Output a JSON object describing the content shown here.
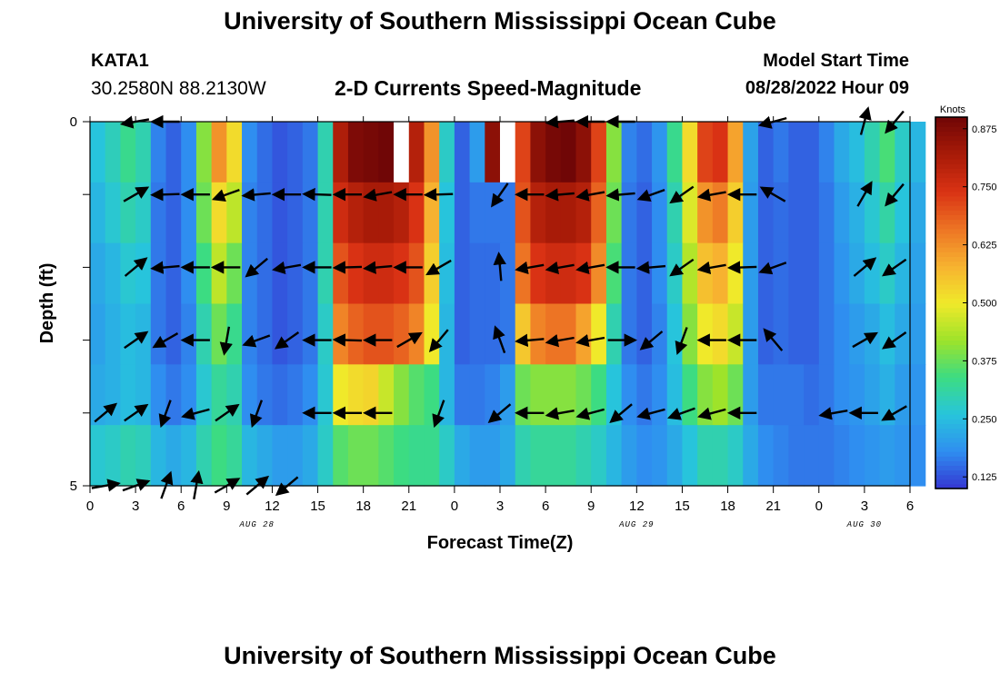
{
  "header": {
    "title": "University of Southern Mississippi Ocean Cube",
    "station_id": "KATA1",
    "station_coords": "30.2580N  88.2130W",
    "chart_heading": "2-D Currents Speed-Magnitude",
    "model_start_label": "Model Start Time",
    "model_start_value": "08/28/2022 Hour 09"
  },
  "footer": {
    "title": "University of Southern Mississippi Ocean Cube"
  },
  "chart_data": {
    "type": "heatmap",
    "title": "2-D Currents Speed-Magnitude",
    "xlabel": "Forecast Time(Z)",
    "ylabel": "Depth (ft)",
    "x_start_hour": 0,
    "x_end_hour": 54,
    "x_tick_labels": [
      "0",
      "3",
      "6",
      "9",
      "12",
      "15",
      "18",
      "21",
      "0",
      "3",
      "6",
      "9",
      "12",
      "15",
      "18",
      "21",
      "0",
      "3",
      "6"
    ],
    "date_labels": [
      {
        "text": "AUG 28",
        "hour": 11
      },
      {
        "text": "AUG 29",
        "hour": 36
      },
      {
        "text": "AUG 30",
        "hour": 51
      }
    ],
    "y_tick_labels": [
      "0",
      "5"
    ],
    "ylim": [
      0,
      5
    ],
    "colorbar": {
      "label": "Knots",
      "range": [
        0.1,
        0.9
      ],
      "ticks": [
        "0.125",
        "0.250",
        "0.375",
        "0.500",
        "0.625",
        "0.750",
        "0.875"
      ],
      "tick_values": [
        0.125,
        0.25,
        0.375,
        0.5,
        0.625,
        0.75,
        0.875
      ]
    },
    "colors": [
      "#3535d2",
      "#2f8ef0",
      "#27c4dc",
      "#3cdc82",
      "#9ee32a",
      "#f0e92a",
      "#f7b230",
      "#ed7424",
      "#d93214",
      "#a81b08",
      "#700606"
    ],
    "missing_color": "#ffffff",
    "layer_labels": [
      "0.0",
      "1.0",
      "2.0",
      "3.0",
      "4.0",
      "5.0"
    ],
    "speed_knots": [
      [
        0.26,
        0.29,
        0.33,
        0.3,
        0.17,
        0.14,
        0.18,
        0.4,
        0.62,
        0.52,
        0.18,
        0.15,
        0.13,
        0.14,
        0.16,
        0.3,
        0.81,
        0.88,
        0.89,
        0.9,
        0.87,
        0.8,
        0.62,
        0.28,
        0.14,
        0.2,
        0.86,
        0.2,
        0.72,
        0.86,
        0.89,
        0.9,
        0.86,
        0.72,
        0.4,
        0.17,
        0.15,
        0.19,
        0.33,
        0.52,
        0.72,
        0.74,
        0.6,
        0.21,
        0.14,
        0.16,
        0.14,
        0.14,
        0.17,
        0.22,
        0.25,
        0.3,
        0.35,
        0.28,
        0.24
      ],
      [
        0.24,
        0.27,
        0.3,
        0.28,
        0.16,
        0.14,
        0.18,
        0.38,
        0.52,
        0.45,
        0.17,
        0.15,
        0.13,
        0.14,
        0.16,
        0.3,
        0.76,
        0.8,
        0.82,
        0.82,
        0.8,
        0.74,
        0.58,
        0.26,
        0.14,
        0.16,
        0.16,
        0.16,
        0.7,
        0.8,
        0.82,
        0.82,
        0.8,
        0.68,
        0.38,
        0.16,
        0.14,
        0.18,
        0.3,
        0.48,
        0.62,
        0.65,
        0.54,
        0.2,
        0.14,
        0.15,
        0.14,
        0.14,
        0.16,
        0.2,
        0.23,
        0.27,
        0.31,
        0.26,
        0.22
      ],
      [
        0.22,
        0.24,
        0.27,
        0.26,
        0.16,
        0.14,
        0.18,
        0.34,
        0.45,
        0.38,
        0.17,
        0.15,
        0.13,
        0.14,
        0.16,
        0.3,
        0.7,
        0.74,
        0.76,
        0.76,
        0.74,
        0.7,
        0.54,
        0.25,
        0.14,
        0.15,
        0.15,
        0.16,
        0.66,
        0.74,
        0.76,
        0.76,
        0.74,
        0.63,
        0.35,
        0.16,
        0.14,
        0.18,
        0.28,
        0.44,
        0.56,
        0.58,
        0.5,
        0.2,
        0.14,
        0.15,
        0.14,
        0.14,
        0.16,
        0.19,
        0.22,
        0.25,
        0.28,
        0.24,
        0.21
      ],
      [
        0.21,
        0.23,
        0.25,
        0.24,
        0.16,
        0.14,
        0.17,
        0.3,
        0.38,
        0.33,
        0.17,
        0.15,
        0.13,
        0.14,
        0.16,
        0.28,
        0.64,
        0.68,
        0.7,
        0.7,
        0.68,
        0.64,
        0.5,
        0.24,
        0.14,
        0.15,
        0.15,
        0.16,
        0.55,
        0.64,
        0.66,
        0.66,
        0.6,
        0.5,
        0.3,
        0.16,
        0.14,
        0.17,
        0.26,
        0.4,
        0.5,
        0.52,
        0.46,
        0.2,
        0.14,
        0.15,
        0.14,
        0.14,
        0.16,
        0.18,
        0.2,
        0.22,
        0.25,
        0.22,
        0.2
      ],
      [
        0.22,
        0.23,
        0.25,
        0.24,
        0.18,
        0.16,
        0.18,
        0.27,
        0.32,
        0.3,
        0.18,
        0.16,
        0.15,
        0.16,
        0.18,
        0.27,
        0.5,
        0.52,
        0.53,
        0.46,
        0.4,
        0.36,
        0.34,
        0.24,
        0.16,
        0.16,
        0.17,
        0.2,
        0.38,
        0.4,
        0.4,
        0.4,
        0.38,
        0.34,
        0.26,
        0.18,
        0.16,
        0.18,
        0.25,
        0.34,
        0.4,
        0.42,
        0.38,
        0.2,
        0.16,
        0.16,
        0.16,
        0.15,
        0.16,
        0.18,
        0.19,
        0.21,
        0.23,
        0.2,
        0.19
      ],
      [
        0.27,
        0.28,
        0.3,
        0.29,
        0.24,
        0.22,
        0.24,
        0.3,
        0.34,
        0.32,
        0.24,
        0.22,
        0.2,
        0.2,
        0.22,
        0.28,
        0.36,
        0.38,
        0.38,
        0.36,
        0.34,
        0.33,
        0.33,
        0.28,
        0.22,
        0.2,
        0.2,
        0.22,
        0.3,
        0.32,
        0.32,
        0.32,
        0.3,
        0.28,
        0.24,
        0.2,
        0.18,
        0.19,
        0.22,
        0.26,
        0.3,
        0.3,
        0.28,
        0.22,
        0.18,
        0.17,
        0.16,
        0.16,
        0.16,
        0.17,
        0.18,
        0.19,
        0.2,
        0.19,
        0.18
      ]
    ],
    "missing_cells": [
      {
        "hour": 20,
        "layer": 0
      },
      {
        "hour": 27,
        "layer": 0
      }
    ],
    "vector_hours": [
      1,
      3,
      5,
      7,
      9,
      11,
      13,
      15,
      17,
      19,
      21,
      23,
      25,
      27,
      29,
      31,
      33,
      35,
      37,
      39,
      41,
      43,
      45,
      47,
      49,
      51,
      53
    ],
    "vector_layers": [
      0,
      1,
      2,
      3,
      4,
      5
    ],
    "vector_angles_deg": [
      [
        0,
        190,
        180,
        0,
        0,
        0,
        0,
        0,
        0,
        0,
        0,
        0,
        0,
        0,
        0,
        185,
        180,
        180,
        0,
        0,
        0,
        0,
        195,
        0,
        0,
        75,
        230
      ],
      [
        0,
        30,
        182,
        180,
        200,
        185,
        180,
        178,
        180,
        190,
        180,
        182,
        0,
        235,
        180,
        185,
        190,
        185,
        200,
        215,
        190,
        180,
        150,
        0,
        0,
        60,
        230
      ],
      [
        0,
        40,
        185,
        180,
        180,
        220,
        190,
        180,
        182,
        185,
        180,
        210,
        0,
        95,
        190,
        190,
        190,
        180,
        185,
        215,
        190,
        182,
        200,
        0,
        0,
        40,
        215
      ],
      [
        0,
        35,
        210,
        180,
        260,
        200,
        215,
        180,
        178,
        180,
        30,
        230,
        0,
        110,
        185,
        190,
        190,
        0,
        220,
        250,
        180,
        180,
        130,
        0,
        0,
        30,
        215
      ],
      [
        40,
        35,
        250,
        195,
        35,
        250,
        0,
        180,
        180,
        180,
        0,
        250,
        0,
        220,
        180,
        190,
        195,
        220,
        195,
        200,
        195,
        180,
        0,
        0,
        190,
        180,
        210
      ],
      [
        10,
        20,
        70,
        80,
        30,
        40,
        220,
        0,
        0,
        0,
        0,
        0,
        0,
        0,
        0,
        0,
        0,
        0,
        0,
        0,
        0,
        0,
        0,
        0,
        0,
        0,
        0
      ]
    ],
    "vector_lengths": [
      [
        0,
        1,
        1,
        0,
        0,
        0,
        0,
        0,
        0,
        0,
        0,
        0,
        0,
        0,
        0,
        1,
        1,
        1,
        0,
        0,
        0,
        0,
        1,
        0,
        0,
        1,
        1
      ],
      [
        0,
        1,
        1,
        1,
        1,
        1,
        1,
        1,
        1,
        1,
        1,
        1,
        0,
        1,
        1,
        1,
        1,
        1,
        1,
        1,
        1,
        1,
        1,
        0,
        0,
        1,
        1
      ],
      [
        0,
        1,
        1,
        1,
        1,
        1,
        1,
        1,
        1,
        1,
        1,
        1,
        0,
        1,
        1,
        1,
        1,
        1,
        1,
        1,
        1,
        1,
        1,
        0,
        0,
        1,
        1
      ],
      [
        0,
        1,
        1,
        1,
        1,
        1,
        1,
        1,
        1,
        1,
        1,
        1,
        0,
        1,
        1,
        1,
        1,
        1,
        1,
        1,
        1,
        1,
        1,
        0,
        0,
        1,
        1
      ],
      [
        1,
        1,
        1,
        1,
        1,
        1,
        0,
        1,
        1,
        1,
        0,
        1,
        0,
        1,
        1,
        1,
        1,
        1,
        1,
        1,
        1,
        1,
        0,
        0,
        1,
        1,
        1
      ],
      [
        1,
        1,
        1,
        1,
        1,
        1,
        1,
        0,
        0,
        0,
        0,
        0,
        0,
        0,
        0,
        0,
        0,
        0,
        0,
        0,
        0,
        0,
        0,
        0,
        0,
        0,
        0
      ]
    ]
  }
}
